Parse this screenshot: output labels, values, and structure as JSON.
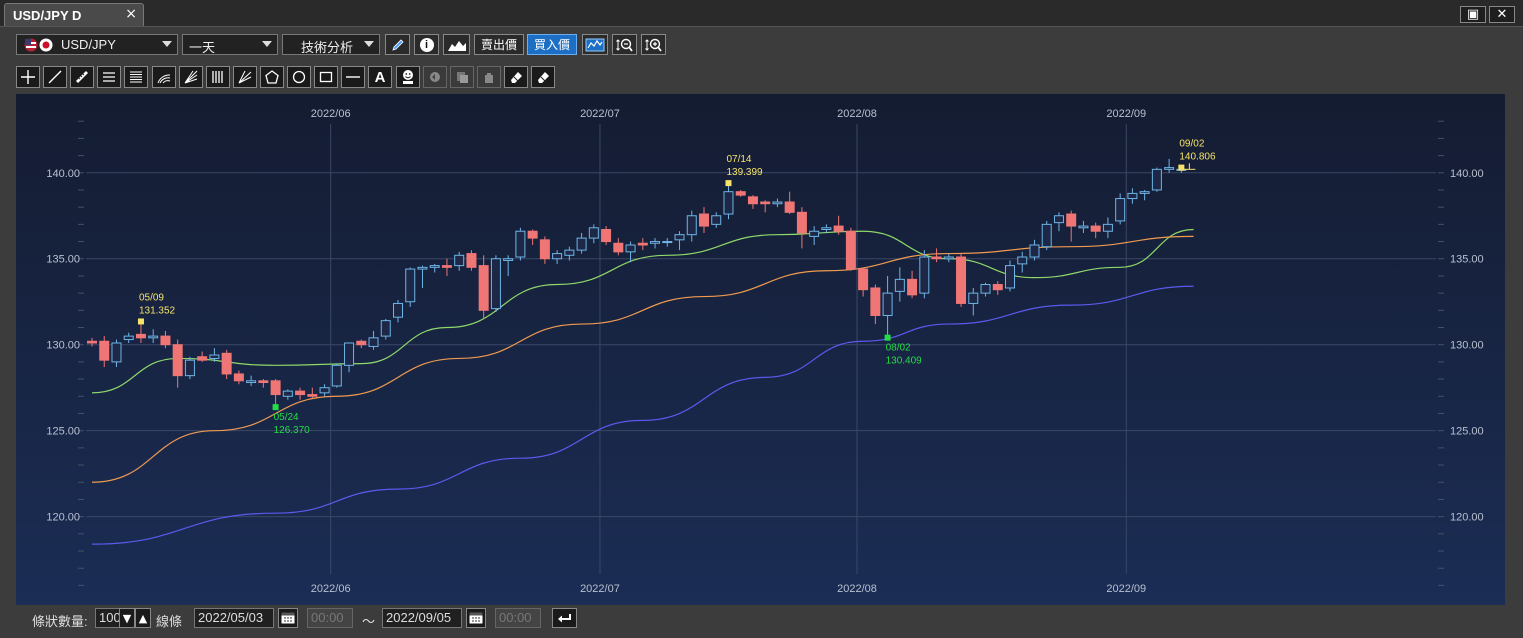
{
  "window": {
    "tab_title": "USD/JPY D",
    "close_glyph": "×",
    "maximize_glyph": "▣",
    "exit_glyph": "✕"
  },
  "toolbar": {
    "symbol": "USD/JPY",
    "period": "一天",
    "analysis": "技術分析",
    "sell_price": "賣出價",
    "buy_price": "買入價",
    "info_glyph": "i"
  },
  "drawing_tools": [
    "crosshair-icon",
    "line-icon",
    "ruler-icon",
    "horizontal-lines-icon",
    "multi-lines-icon",
    "arc-icon",
    "fan-icon",
    "vertical-lines-icon",
    "angle-icon",
    "pentagon-icon",
    "circle-icon",
    "rectangle-icon",
    "hline-icon",
    "text-icon",
    "smiley-icon",
    "undo-icon",
    "copy-icon",
    "hand-icon",
    "eraser-icon",
    "eraser-all-icon"
  ],
  "text_tool_label": "A",
  "bottom": {
    "bar_count_label": "條狀數量:",
    "bar_count": "100",
    "line_label": "線條",
    "start_date": "2022/05/03",
    "start_time": "00:00",
    "tilde": "～",
    "end_date": "2022/09/05",
    "end_time": "00:00"
  },
  "chart_data": {
    "type": "candlestick",
    "ylim": [
      115.5,
      144
    ],
    "yticks": [
      120,
      125,
      130,
      135,
      140
    ],
    "ytick_labels": [
      "120.00",
      "125.00",
      "130.00",
      "135.00",
      "140.00"
    ],
    "xticks": [
      {
        "label": "2022/06",
        "index": 20
      },
      {
        "label": "2022/07",
        "index": 42
      },
      {
        "label": "2022/08",
        "index": 63
      },
      {
        "label": "2022/09",
        "index": 85
      }
    ],
    "grid": true,
    "colors": {
      "up": "#6fb4e6",
      "down": "#f07676",
      "ma_short": "#8fd86a",
      "ma_mid": "#f09a50",
      "ma_long": "#5a5aee",
      "high_mark": "#f5e36a",
      "low_mark": "#22dd44"
    },
    "candles": [
      {
        "o": 130.2,
        "h": 130.4,
        "l": 129.9,
        "c": 130.1
      },
      {
        "o": 130.2,
        "h": 130.5,
        "l": 128.7,
        "c": 129.1
      },
      {
        "o": 129.0,
        "h": 130.3,
        "l": 128.7,
        "c": 130.1
      },
      {
        "o": 130.3,
        "h": 130.7,
        "l": 130.1,
        "c": 130.5
      },
      {
        "o": 130.6,
        "h": 131.352,
        "l": 130.1,
        "c": 130.4
      },
      {
        "o": 130.4,
        "h": 130.9,
        "l": 130.1,
        "c": 130.5
      },
      {
        "o": 130.5,
        "h": 130.8,
        "l": 129.8,
        "c": 130.0
      },
      {
        "o": 130.0,
        "h": 130.3,
        "l": 127.5,
        "c": 128.2
      },
      {
        "o": 128.2,
        "h": 129.3,
        "l": 128.0,
        "c": 129.1
      },
      {
        "o": 129.3,
        "h": 129.6,
        "l": 129.0,
        "c": 129.1
      },
      {
        "o": 129.2,
        "h": 129.8,
        "l": 129.0,
        "c": 129.4
      },
      {
        "o": 129.5,
        "h": 129.7,
        "l": 128.0,
        "c": 128.3
      },
      {
        "o": 128.3,
        "h": 128.5,
        "l": 127.7,
        "c": 127.9
      },
      {
        "o": 127.8,
        "h": 128.2,
        "l": 127.6,
        "c": 127.9
      },
      {
        "o": 127.9,
        "h": 128.0,
        "l": 127.5,
        "c": 127.8
      },
      {
        "o": 127.9,
        "h": 128.0,
        "l": 126.37,
        "c": 127.1
      },
      {
        "o": 127.0,
        "h": 127.4,
        "l": 126.8,
        "c": 127.3
      },
      {
        "o": 127.3,
        "h": 127.5,
        "l": 126.8,
        "c": 127.1
      },
      {
        "o": 127.1,
        "h": 127.5,
        "l": 126.9,
        "c": 127.0
      },
      {
        "o": 127.2,
        "h": 127.7,
        "l": 127.0,
        "c": 127.5
      },
      {
        "o": 127.6,
        "h": 128.9,
        "l": 127.5,
        "c": 128.8
      },
      {
        "o": 128.8,
        "h": 130.1,
        "l": 128.4,
        "c": 130.1
      },
      {
        "o": 130.2,
        "h": 130.3,
        "l": 129.8,
        "c": 130.0
      },
      {
        "o": 129.9,
        "h": 130.8,
        "l": 129.7,
        "c": 130.4
      },
      {
        "o": 130.5,
        "h": 131.5,
        "l": 130.3,
        "c": 131.4
      },
      {
        "o": 131.6,
        "h": 132.6,
        "l": 131.3,
        "c": 132.4
      },
      {
        "o": 132.5,
        "h": 134.5,
        "l": 132.2,
        "c": 134.4
      },
      {
        "o": 134.4,
        "h": 134.6,
        "l": 133.3,
        "c": 134.5
      },
      {
        "o": 134.5,
        "h": 134.7,
        "l": 134.2,
        "c": 134.6
      },
      {
        "o": 134.6,
        "h": 135.0,
        "l": 134.0,
        "c": 134.5
      },
      {
        "o": 134.6,
        "h": 135.4,
        "l": 134.3,
        "c": 135.2
      },
      {
        "o": 135.3,
        "h": 135.5,
        "l": 134.3,
        "c": 134.5
      },
      {
        "o": 134.6,
        "h": 135.2,
        "l": 131.5,
        "c": 132.0
      },
      {
        "o": 132.1,
        "h": 135.2,
        "l": 131.9,
        "c": 135.0
      },
      {
        "o": 134.9,
        "h": 135.2,
        "l": 134.0,
        "c": 135.0
      },
      {
        "o": 135.1,
        "h": 136.8,
        "l": 134.9,
        "c": 136.6
      },
      {
        "o": 136.6,
        "h": 136.7,
        "l": 135.8,
        "c": 136.2
      },
      {
        "o": 136.1,
        "h": 136.3,
        "l": 134.7,
        "c": 135.0
      },
      {
        "o": 135.0,
        "h": 135.5,
        "l": 134.7,
        "c": 135.3
      },
      {
        "o": 135.2,
        "h": 135.7,
        "l": 134.9,
        "c": 135.5
      },
      {
        "o": 135.5,
        "h": 136.5,
        "l": 135.3,
        "c": 136.2
      },
      {
        "o": 136.2,
        "h": 137.0,
        "l": 135.9,
        "c": 136.8
      },
      {
        "o": 136.7,
        "h": 136.9,
        "l": 135.8,
        "c": 136.0
      },
      {
        "o": 135.9,
        "h": 136.2,
        "l": 135.2,
        "c": 135.4
      },
      {
        "o": 135.4,
        "h": 136.0,
        "l": 134.8,
        "c": 135.8
      },
      {
        "o": 135.9,
        "h": 136.2,
        "l": 135.5,
        "c": 135.8
      },
      {
        "o": 135.9,
        "h": 136.2,
        "l": 135.6,
        "c": 136.0
      },
      {
        "o": 136.0,
        "h": 136.2,
        "l": 135.7,
        "c": 136.0
      },
      {
        "o": 136.1,
        "h": 136.6,
        "l": 135.5,
        "c": 136.4
      },
      {
        "o": 136.4,
        "h": 137.8,
        "l": 136.0,
        "c": 137.5
      },
      {
        "o": 137.6,
        "h": 138.0,
        "l": 136.5,
        "c": 136.9
      },
      {
        "o": 137.0,
        "h": 137.7,
        "l": 136.8,
        "c": 137.5
      },
      {
        "o": 137.6,
        "h": 139.399,
        "l": 137.3,
        "c": 138.9
      },
      {
        "o": 138.9,
        "h": 139.0,
        "l": 138.6,
        "c": 138.7
      },
      {
        "o": 138.6,
        "h": 138.7,
        "l": 137.9,
        "c": 138.2
      },
      {
        "o": 138.3,
        "h": 138.4,
        "l": 137.7,
        "c": 138.2
      },
      {
        "o": 138.2,
        "h": 138.5,
        "l": 138.0,
        "c": 138.3
      },
      {
        "o": 138.3,
        "h": 138.9,
        "l": 137.6,
        "c": 137.7
      },
      {
        "o": 137.7,
        "h": 138.0,
        "l": 135.6,
        "c": 136.5
      },
      {
        "o": 136.3,
        "h": 136.9,
        "l": 135.8,
        "c": 136.6
      },
      {
        "o": 136.7,
        "h": 137.0,
        "l": 136.5,
        "c": 136.8
      },
      {
        "o": 136.9,
        "h": 137.5,
        "l": 136.4,
        "c": 136.6
      },
      {
        "o": 136.6,
        "h": 136.8,
        "l": 134.3,
        "c": 134.4
      },
      {
        "o": 134.4,
        "h": 134.5,
        "l": 132.8,
        "c": 133.2
      },
      {
        "o": 133.3,
        "h": 133.5,
        "l": 131.2,
        "c": 131.7
      },
      {
        "o": 131.7,
        "h": 134.0,
        "l": 130.409,
        "c": 133.0
      },
      {
        "o": 133.1,
        "h": 134.5,
        "l": 132.5,
        "c": 133.8
      },
      {
        "o": 133.8,
        "h": 134.3,
        "l": 132.7,
        "c": 132.9
      },
      {
        "o": 133.0,
        "h": 135.5,
        "l": 132.7,
        "c": 135.1
      },
      {
        "o": 135.1,
        "h": 135.6,
        "l": 134.8,
        "c": 135.0
      },
      {
        "o": 135.0,
        "h": 135.3,
        "l": 134.8,
        "c": 135.1
      },
      {
        "o": 135.1,
        "h": 135.3,
        "l": 132.2,
        "c": 132.4
      },
      {
        "o": 132.4,
        "h": 133.3,
        "l": 131.7,
        "c": 133.0
      },
      {
        "o": 133.0,
        "h": 133.6,
        "l": 132.8,
        "c": 133.5
      },
      {
        "o": 133.5,
        "h": 133.7,
        "l": 132.9,
        "c": 133.2
      },
      {
        "o": 133.3,
        "h": 134.9,
        "l": 133.1,
        "c": 134.6
      },
      {
        "o": 134.7,
        "h": 135.4,
        "l": 134.2,
        "c": 135.1
      },
      {
        "o": 135.1,
        "h": 136.1,
        "l": 134.9,
        "c": 135.8
      },
      {
        "o": 135.7,
        "h": 137.2,
        "l": 135.5,
        "c": 137.0
      },
      {
        "o": 137.1,
        "h": 137.7,
        "l": 136.6,
        "c": 137.5
      },
      {
        "o": 137.6,
        "h": 137.8,
        "l": 136.0,
        "c": 136.9
      },
      {
        "o": 136.8,
        "h": 137.2,
        "l": 136.5,
        "c": 136.9
      },
      {
        "o": 136.9,
        "h": 137.1,
        "l": 136.2,
        "c": 136.6
      },
      {
        "o": 136.6,
        "h": 137.4,
        "l": 136.2,
        "c": 137.0
      },
      {
        "o": 137.2,
        "h": 138.8,
        "l": 137.0,
        "c": 138.5
      },
      {
        "o": 138.5,
        "h": 139.1,
        "l": 138.2,
        "c": 138.8
      },
      {
        "o": 138.8,
        "h": 139.0,
        "l": 138.4,
        "c": 138.9
      },
      {
        "o": 139.0,
        "h": 140.3,
        "l": 138.9,
        "c": 140.2
      },
      {
        "o": 140.2,
        "h": 140.806,
        "l": 140.0,
        "c": 140.3
      },
      {
        "o": 140.2,
        "h": 140.3,
        "l": 140.0,
        "c": 140.2
      }
    ],
    "ma_short": [
      [
        0,
        127.2
      ],
      [
        7,
        129.2
      ],
      [
        15,
        128.8
      ],
      [
        22,
        128.9
      ],
      [
        29,
        131.0
      ],
      [
        38,
        133.5
      ],
      [
        47,
        135.2
      ],
      [
        56,
        136.4
      ],
      [
        63,
        136.6
      ],
      [
        70,
        135.0
      ],
      [
        77,
        133.9
      ],
      [
        84,
        134.5
      ],
      [
        90,
        136.7
      ]
    ],
    "ma_mid": [
      [
        0,
        122.0
      ],
      [
        10,
        125.0
      ],
      [
        20,
        127.0
      ],
      [
        30,
        129.2
      ],
      [
        40,
        131.2
      ],
      [
        50,
        132.8
      ],
      [
        60,
        134.3
      ],
      [
        70,
        135.3
      ],
      [
        80,
        135.7
      ],
      [
        90,
        136.3
      ]
    ],
    "ma_long": [
      [
        0,
        118.4
      ],
      [
        15,
        120.2
      ],
      [
        25,
        121.6
      ],
      [
        35,
        123.4
      ],
      [
        45,
        125.6
      ],
      [
        55,
        128.1
      ],
      [
        63,
        130.2
      ],
      [
        70,
        131.2
      ],
      [
        80,
        132.3
      ],
      [
        90,
        133.4
      ]
    ],
    "annotations": [
      {
        "index": 4,
        "date": "05/09",
        "value": "131.352",
        "type": "high"
      },
      {
        "index": 15,
        "date": "05/24",
        "value": "126.370",
        "type": "low"
      },
      {
        "index": 52,
        "date": "07/14",
        "value": "139.399",
        "type": "high"
      },
      {
        "index": 65,
        "date": "08/02",
        "value": "130.409",
        "type": "low"
      },
      {
        "index": 89,
        "date": "09/02",
        "value": "140.806",
        "type": "high"
      }
    ]
  }
}
